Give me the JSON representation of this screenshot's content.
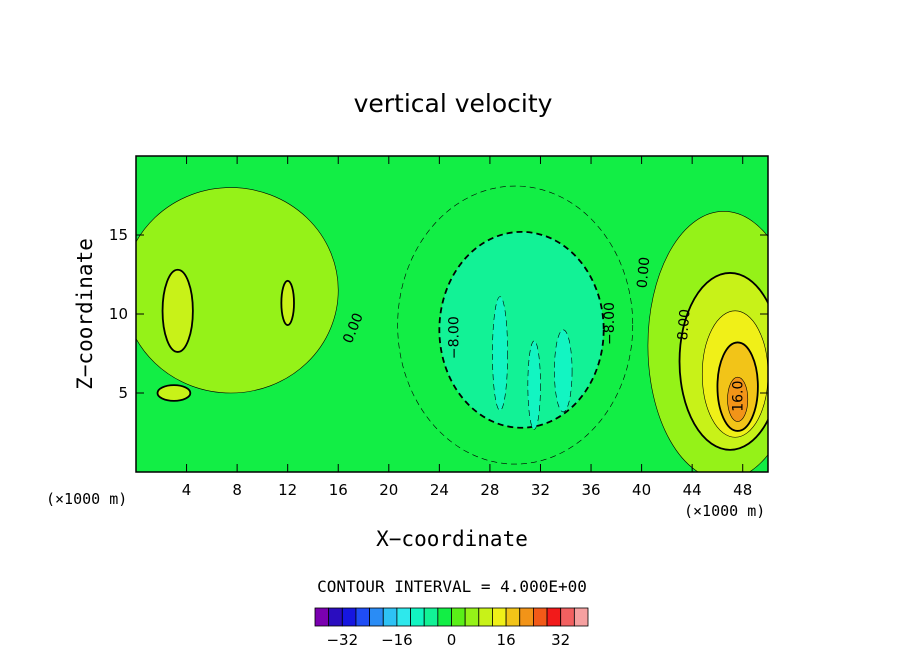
{
  "chart_data": {
    "type": "heatmap",
    "title": "vertical velocity",
    "xlabel": "X−coordinate",
    "ylabel": "Z−coordinate",
    "x_unit_left": "(×1000 m)",
    "x_unit_right": "(×1000 m)",
    "xlim": [
      0,
      50
    ],
    "ylim": [
      0,
      20
    ],
    "x_ticks": [
      4,
      8,
      12,
      16,
      20,
      24,
      28,
      32,
      36,
      40,
      44,
      48
    ],
    "y_ticks": [
      5,
      10,
      15
    ],
    "contour_interval_text": "CONTOUR INTERVAL = 4.000E+00",
    "contour_labels": [
      {
        "text": "0.00",
        "x": 17.5,
        "y": 9.0,
        "angle": -68
      },
      {
        "text": "−8.00",
        "x": 25.5,
        "y": 8.5,
        "angle": -90
      },
      {
        "text": "−8.00",
        "x": 37.8,
        "y": 9.4,
        "angle": -90
      },
      {
        "text": "0.00",
        "x": 40.5,
        "y": 12.6,
        "angle": -85
      },
      {
        "text": "8.00",
        "x": 43.7,
        "y": 9.3,
        "angle": -85
      },
      {
        "text": "16.0",
        "x": 48.0,
        "y": 4.8,
        "angle": -90
      }
    ],
    "colorbar": {
      "levels": [
        -36,
        -32,
        -28,
        -24,
        -20,
        -16,
        -12,
        -8,
        -4,
        0,
        4,
        8,
        12,
        16,
        20,
        24,
        28,
        32,
        36
      ],
      "colors": [
        "#7a00b0",
        "#2a0dbf",
        "#1616e0",
        "#1f4df5",
        "#2a8cf5",
        "#2ec2f5",
        "#2ee8ec",
        "#12f5c2",
        "#12f296",
        "#12ee45",
        "#5aef18",
        "#95f218",
        "#c8f218",
        "#f0f018",
        "#f2c418",
        "#f29418",
        "#f25a18",
        "#f21a1a",
        "#f26060",
        "#f5a0a0"
      ],
      "tick_labels": [
        "−32",
        "−16",
        "0",
        "16",
        "32"
      ],
      "tick_values": [
        -32,
        -16,
        0,
        16,
        32
      ]
    },
    "field": {
      "background_level": 0,
      "features": [
        {
          "name": "west-updraft",
          "kind": "ellipse",
          "level": 4,
          "cx": 7.5,
          "cy": 11.5,
          "rx": 8.5,
          "ry": 6.5
        },
        {
          "name": "west-cell-a",
          "kind": "ellipse",
          "level": 8,
          "cx": 3.3,
          "cy": 10.2,
          "rx": 1.2,
          "ry": 2.6
        },
        {
          "name": "west-cell-b",
          "kind": "ellipse",
          "level": 8,
          "cx": 12.0,
          "cy": 10.7,
          "rx": 0.5,
          "ry": 1.4
        },
        {
          "name": "west-cell-c",
          "kind": "ellipse",
          "level": 8,
          "cx": 3.0,
          "cy": 5.0,
          "rx": 1.3,
          "ry": 0.5
        },
        {
          "name": "central-downdraft",
          "kind": "ellipse",
          "level": -4,
          "cx": 30.0,
          "cy": 9.3,
          "rx": 9.3,
          "ry": 8.8
        },
        {
          "name": "central-downdraft-core",
          "kind": "ellipse",
          "level": -8,
          "cx": 30.5,
          "cy": 9.0,
          "rx": 6.5,
          "ry": 6.2
        },
        {
          "name": "central-streak-a",
          "kind": "ellipse",
          "level": -12,
          "cx": 28.8,
          "cy": 7.5,
          "rx": 0.6,
          "ry": 3.6
        },
        {
          "name": "central-streak-b",
          "kind": "ellipse",
          "level": -12,
          "cx": 31.5,
          "cy": 5.5,
          "rx": 0.5,
          "ry": 2.8
        },
        {
          "name": "central-streak-c",
          "kind": "ellipse",
          "level": -12,
          "cx": 33.8,
          "cy": 6.4,
          "rx": 0.7,
          "ry": 2.6
        },
        {
          "name": "east-updraft",
          "kind": "ellipse",
          "level": 4,
          "cx": 46.5,
          "cy": 8.0,
          "rx": 6.0,
          "ry": 8.5
        },
        {
          "name": "east-updraft-8",
          "kind": "ellipse",
          "level": 8,
          "cx": 47.0,
          "cy": 7.0,
          "rx": 4.0,
          "ry": 5.6
        },
        {
          "name": "east-updraft-12",
          "kind": "ellipse",
          "level": 12,
          "cx": 47.4,
          "cy": 6.2,
          "rx": 2.6,
          "ry": 4.0
        },
        {
          "name": "east-updraft-16",
          "kind": "ellipse",
          "level": 16,
          "cx": 47.6,
          "cy": 5.4,
          "rx": 1.6,
          "ry": 2.8
        },
        {
          "name": "east-updraft-20",
          "kind": "ellipse",
          "level": 20,
          "cx": 47.6,
          "cy": 4.6,
          "rx": 0.8,
          "ry": 1.4
        }
      ]
    }
  }
}
